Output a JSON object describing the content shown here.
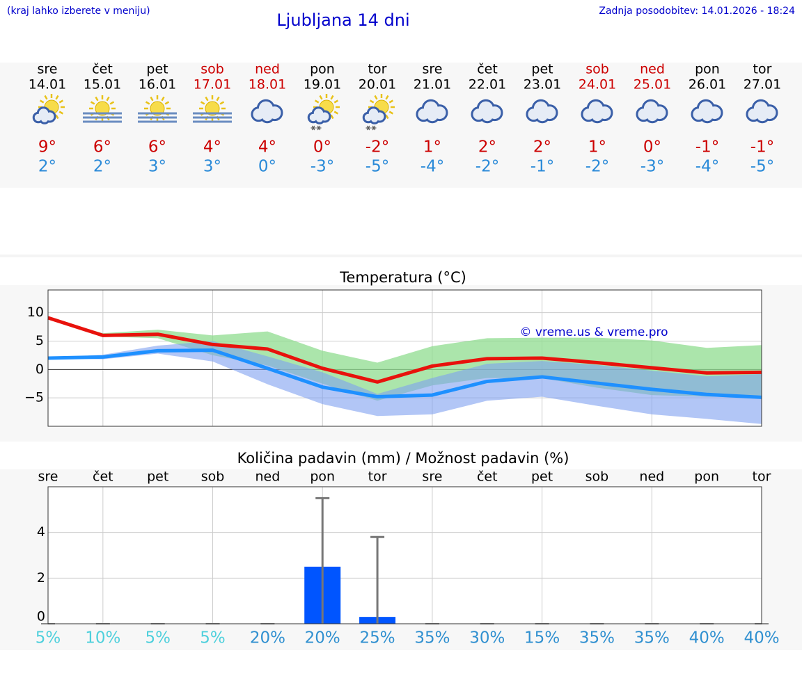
{
  "header": {
    "hint": "(kraj lahko izberete v meniju)",
    "title": "Ljubljana 14 dni",
    "updated": "Zadnja posodobitev: 14.01.2026 - 18:24"
  },
  "forecast": {
    "days": [
      {
        "day": "sre",
        "date": "14.01",
        "max": "9°",
        "min": "2°"
      },
      {
        "day": "čet",
        "date": "15.01",
        "max": "6°",
        "min": "2°"
      },
      {
        "day": "pet",
        "date": "16.01",
        "max": "6°",
        "min": "3°"
      },
      {
        "day": "sob",
        "date": "17.01",
        "max": "4°",
        "min": "3°"
      },
      {
        "day": "ned",
        "date": "18.01",
        "max": "4°",
        "min": "0°"
      },
      {
        "day": "pon",
        "date": "19.01",
        "max": "0°",
        "min": "-3°"
      },
      {
        "day": "tor",
        "date": "20.01",
        "max": "-2°",
        "min": "-5°"
      },
      {
        "day": "sre",
        "date": "21.01",
        "max": "1°",
        "min": "-4°"
      },
      {
        "day": "čet",
        "date": "22.01",
        "max": "2°",
        "min": "-2°"
      },
      {
        "day": "pet",
        "date": "23.01",
        "max": "2°",
        "min": "-1°"
      },
      {
        "day": "sob",
        "date": "24.01",
        "max": "1°",
        "min": "-2°"
      },
      {
        "day": "ned",
        "date": "25.01",
        "max": "0°",
        "min": "-3°"
      },
      {
        "day": "pon",
        "date": "26.01",
        "max": "-1°",
        "min": "-4°"
      },
      {
        "day": "tor",
        "date": "27.01",
        "max": "-1°",
        "min": "-5°"
      }
    ]
  },
  "chart_data": [
    {
      "type": "line",
      "title": "Temperatura (°C)",
      "annotation": "© vreme.us & vreme.pro",
      "categories": [
        null,
        null,
        null,
        null,
        null,
        null,
        null,
        null,
        null,
        null,
        null,
        null,
        null,
        null
      ],
      "ylim": [
        -10,
        14
      ],
      "yticks": [
        {
          "value": -5,
          "label": "−5"
        },
        0,
        5,
        10
      ],
      "grid": true,
      "bands": [
        {
          "color": "#8fdc8f",
          "upper": [
            9,
            6.4,
            7,
            6,
            6.7,
            3.3,
            1.2,
            4.1,
            5.5,
            5.6,
            5.6,
            5.1,
            3.8,
            4.3
          ],
          "lower": [
            9,
            5.8,
            5.5,
            2.5,
            0.7,
            -2.5,
            -5.5,
            -2.8,
            -1.5,
            -1.5,
            -3.2,
            -4.5,
            -4.8,
            -4.8
          ]
        },
        {
          "color": "#7fa0f0",
          "upper": [
            2,
            2.6,
            4.2,
            5,
            2.3,
            -0.5,
            -4.3,
            -1.5,
            1,
            1.5,
            0.8,
            -0.2,
            -1.2,
            -0.8
          ],
          "lower": [
            2,
            1.8,
            2.8,
            1.4,
            -2.6,
            -6.1,
            -8.2,
            -7.9,
            -5.5,
            -4.8,
            -6.4,
            -7.9,
            -8.7,
            -9.6
          ]
        }
      ],
      "series": [
        {
          "color": "#e8120c",
          "values": [
            9.1,
            6,
            6.2,
            4.4,
            3.6,
            0.2,
            -2.2,
            0.6,
            1.9,
            2,
            1.2,
            0.3,
            -0.6,
            -0.5
          ]
        },
        {
          "color": "#1e90ff",
          "values": [
            2,
            2.2,
            3.3,
            3.4,
            0.2,
            -3.1,
            -4.8,
            -4.5,
            -2.1,
            -1.3,
            -2.4,
            -3.5,
            -4.4,
            -4.9
          ]
        }
      ]
    },
    {
      "type": "bar",
      "title": "Količina padavin (mm) / Možnost padavin (%)",
      "categories": [
        "sre",
        "čet",
        "pet",
        "sob",
        "ned",
        "pon",
        "tor",
        "sre",
        "čet",
        "pet",
        "sob",
        "ned",
        "pon",
        "tor"
      ],
      "values": [
        0,
        0,
        0,
        0,
        0,
        2.5,
        0.3,
        0,
        0,
        0,
        0,
        0,
        0,
        0
      ],
      "error_high": [
        null,
        null,
        null,
        null,
        null,
        5.5,
        3.8,
        null,
        null,
        null,
        null,
        null,
        null,
        null
      ],
      "color": "#0055ff",
      "ylim": [
        0,
        6
      ],
      "yticks": [
        0,
        2,
        4
      ],
      "grid": true,
      "probability": {
        "values": [
          5,
          10,
          5,
          5,
          20,
          20,
          25,
          35,
          30,
          15,
          35,
          35,
          40,
          40
        ],
        "value_labels": [
          "5%",
          "10%",
          "5%",
          "5%",
          "20%",
          "20%",
          "25%",
          "35%",
          "30%",
          "15%",
          "35%",
          "35%",
          "40%",
          "40%"
        ]
      }
    }
  ]
}
